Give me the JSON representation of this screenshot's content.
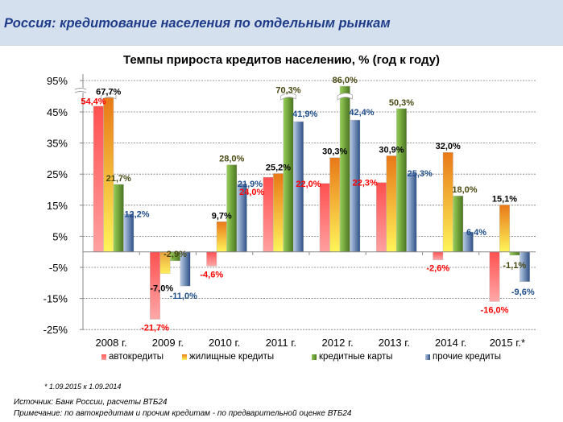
{
  "header": {
    "title": "Россия: кредитование населения по отдельным рынкам"
  },
  "chart_data": {
    "type": "bar",
    "title": "Темпы прироста кредитов населению, % (год к году)",
    "xlabel": "",
    "ylabel": "",
    "ylim": [
      -25,
      95
    ],
    "axis_break": {
      "from": 45,
      "to": 95
    },
    "yticks": [
      "95%",
      "45%",
      "35%",
      "25%",
      "15%",
      "5%",
      "-5%",
      "-15%",
      "-25%"
    ],
    "ytick_values": [
      95,
      45,
      35,
      25,
      15,
      5,
      -5,
      -15,
      -25
    ],
    "grid": true,
    "legend_position": "bottom",
    "categories": [
      "2008 г.",
      "2009 г.",
      "2010 г.",
      "2011 г.",
      "2012 г.",
      "2013 г.",
      "2014 г.",
      "2015 г.*"
    ],
    "series": [
      {
        "name": "автокредиты",
        "color": "#ff5a5a",
        "label_color": "#ff0000",
        "values": [
          54.4,
          -21.7,
          -4.6,
          24.0,
          22.0,
          22.3,
          -2.6,
          -16.0
        ],
        "labels": [
          "54,4%",
          "-21,7%",
          "-4,6%",
          "24,0%",
          "22,0%",
          "22,3%",
          "-2,6%",
          "-16,0%"
        ]
      },
      {
        "name": "жилищные кредиты",
        "color": "#f0a030",
        "label_color": "#000000",
        "values": [
          67.7,
          -7.0,
          9.7,
          25.2,
          30.3,
          30.9,
          32.0,
          15.1
        ],
        "labels": [
          "67,7%",
          "-7,0%",
          "9,7%",
          "25,2%",
          "30,3%",
          "30,9%",
          "32,0%",
          "15,1%"
        ]
      },
      {
        "name": "кредитные карты",
        "color": "#6aa33a",
        "label_color": "#4a4a14",
        "values": [
          21.7,
          -2.9,
          28.0,
          70.3,
          86.0,
          50.3,
          18.0,
          -1.1
        ],
        "labels": [
          "21,7%",
          "-2,9%",
          "28,0%",
          "70,3%",
          "86,0%",
          "50,3%",
          "18,0%",
          "-1,1%"
        ]
      },
      {
        "name": "прочие кредиты",
        "color": "#5a7bab",
        "label_color": "#1f4e8c",
        "values": [
          12.2,
          -11.0,
          21.9,
          41.9,
          42.4,
          25.3,
          6.4,
          -9.6
        ],
        "labels": [
          "12,2%",
          "-11,0%",
          "21,9%",
          "41,9%",
          "42,4%",
          "25,3%",
          "6,4%",
          "-9,6%"
        ]
      }
    ]
  },
  "footnote": "* 1.09.2015 к 1.09.2014",
  "source": {
    "line1": "Источник: Банк России, расчеты ВТБ24",
    "line2": "Примечание: по автокредитам и прочим кредитам -  по предварительной оценке ВТБ24"
  }
}
